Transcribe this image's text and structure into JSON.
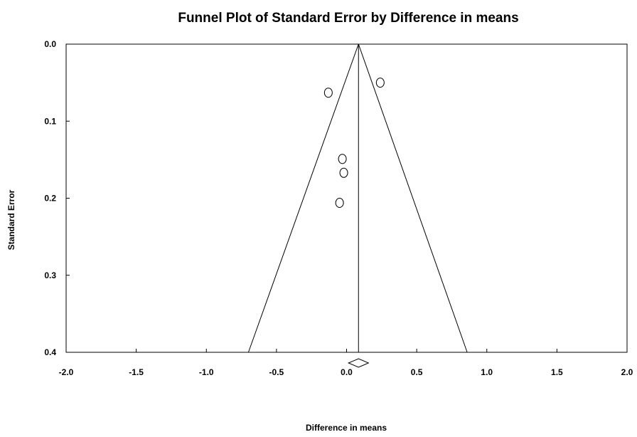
{
  "chart_data": {
    "type": "scatter",
    "title": "Funnel Plot of Standard Error by Difference in means",
    "xlabel": "Difference in means",
    "ylabel": "Standard Error",
    "xlim": [
      -2.0,
      2.0
    ],
    "ylim": [
      0.0,
      0.4
    ],
    "y_inverted": true,
    "x_ticks": [
      "-2.0",
      "-1.5",
      "-1.0",
      "-0.5",
      "0.0",
      "0.5",
      "1.0",
      "1.5",
      "2.0"
    ],
    "y_ticks": [
      "0.0",
      "0.1",
      "0.2",
      "0.3",
      "0.4"
    ],
    "grid": false,
    "points": [
      {
        "x": 0.24,
        "y": 0.05
      },
      {
        "x": -0.13,
        "y": 0.063
      },
      {
        "x": -0.03,
        "y": 0.149
      },
      {
        "x": -0.02,
        "y": 0.167
      },
      {
        "x": -0.05,
        "y": 0.206
      }
    ],
    "summary_effect": 0.085,
    "funnel_bottom": [
      -0.7,
      0.86
    ],
    "colors": {
      "stroke": "#000000",
      "background": "#ffffff"
    }
  }
}
